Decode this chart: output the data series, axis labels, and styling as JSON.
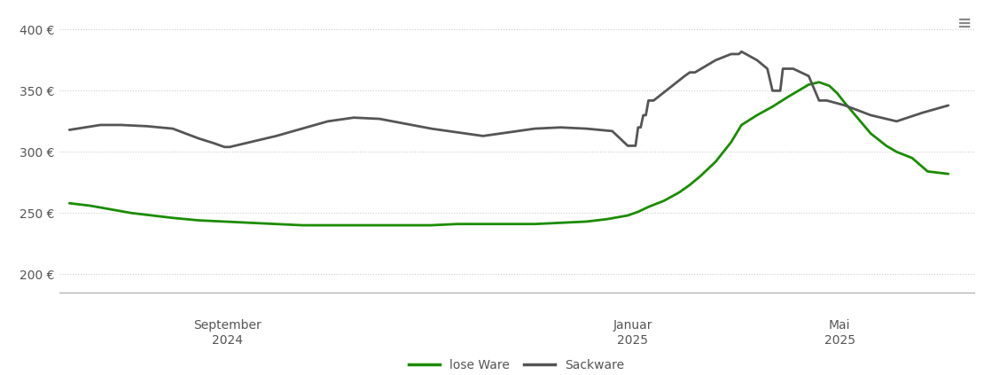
{
  "lose_ware_x": [
    0,
    0.4,
    0.8,
    1.2,
    1.6,
    2.0,
    2.5,
    3.0,
    3.5,
    4.0,
    4.5,
    5.0,
    5.5,
    6.0,
    6.5,
    7.0,
    7.5,
    8.0,
    8.5,
    9.0,
    9.5,
    10.0,
    10.4,
    10.8,
    11.0,
    11.2,
    11.5,
    11.8,
    12.0,
    12.2,
    12.5,
    12.8,
    13.0,
    13.3,
    13.6,
    13.9,
    14.1,
    14.3,
    14.5,
    14.7,
    14.85,
    15.0,
    15.2,
    15.5,
    15.8,
    16.0,
    16.3,
    16.6,
    17.0
  ],
  "lose_ware_y": [
    258,
    256,
    253,
    250,
    248,
    246,
    244,
    243,
    242,
    241,
    240,
    240,
    240,
    240,
    240,
    240,
    241,
    241,
    241,
    241,
    242,
    243,
    245,
    248,
    251,
    255,
    260,
    267,
    273,
    280,
    292,
    308,
    322,
    330,
    337,
    345,
    350,
    355,
    357,
    354,
    348,
    340,
    330,
    315,
    305,
    300,
    295,
    284,
    282
  ],
  "sackware_x": [
    0,
    0.3,
    0.6,
    1.0,
    1.5,
    2.0,
    2.5,
    2.8,
    3.0,
    3.05,
    3.1,
    3.5,
    4.0,
    4.5,
    5.0,
    5.5,
    6.0,
    6.5,
    7.0,
    7.5,
    8.0,
    8.5,
    9.0,
    9.5,
    10.0,
    10.5,
    10.8,
    10.85,
    10.9,
    10.95,
    11.0,
    11.05,
    11.1,
    11.15,
    11.2,
    11.25,
    11.3,
    11.6,
    11.9,
    12.0,
    12.05,
    12.1,
    12.5,
    12.8,
    12.85,
    12.9,
    12.95,
    13.0,
    13.3,
    13.5,
    13.6,
    13.65,
    13.7,
    13.75,
    13.8,
    14.0,
    14.3,
    14.5,
    14.55,
    14.6,
    14.65,
    15.0,
    15.5,
    16.0,
    16.5,
    17.0
  ],
  "sackware_y": [
    318,
    320,
    322,
    322,
    321,
    319,
    311,
    307,
    304,
    304,
    304,
    308,
    313,
    319,
    325,
    328,
    327,
    323,
    319,
    316,
    313,
    316,
    319,
    320,
    319,
    317,
    305,
    305,
    305,
    305,
    320,
    320,
    330,
    330,
    342,
    342,
    342,
    352,
    362,
    365,
    365,
    365,
    375,
    380,
    380,
    380,
    380,
    382,
    375,
    368,
    350,
    350,
    350,
    350,
    368,
    368,
    362,
    342,
    342,
    342,
    342,
    338,
    330,
    325,
    332,
    338
  ],
  "x_tick_positions": [
    3.05,
    10.9,
    14.9
  ],
  "x_tick_labels_line1": [
    "September",
    "Januar",
    "Mai"
  ],
  "x_tick_labels_line2": [
    "2024",
    "2025",
    "2025"
  ],
  "y_ticks": [
    200,
    250,
    300,
    350,
    400
  ],
  "ylim": [
    185,
    415
  ],
  "xlim": [
    -0.2,
    17.5
  ],
  "lose_ware_color": "#1a8c00",
  "sackware_color": "#555555",
  "background_color": "#ffffff",
  "grid_color": "#cccccc",
  "legend_labels": [
    "lose Ware",
    "Sackware"
  ],
  "line_width": 2.0
}
